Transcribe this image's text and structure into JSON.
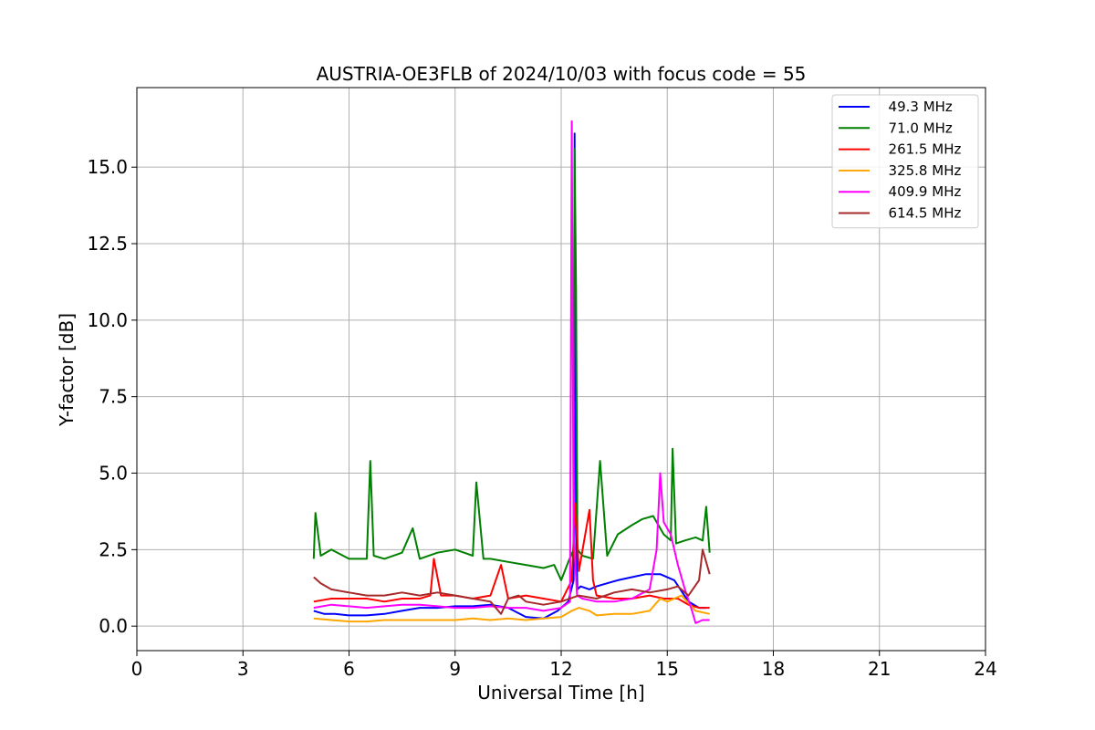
{
  "chart_data": {
    "type": "line",
    "title": "AUSTRIA-OE3FLB of 2024/10/03 with focus code = 55",
    "xlabel": "Universal Time [h]",
    "ylabel": "Y-factor [dB]",
    "xlim": [
      0,
      24
    ],
    "ylim": [
      -0.8,
      17.6
    ],
    "xticks": [
      0,
      3,
      6,
      9,
      12,
      15,
      18,
      21,
      24
    ],
    "xtick_labels": [
      "0",
      "3",
      "6",
      "9",
      "12",
      "15",
      "18",
      "21",
      "24"
    ],
    "yticks": [
      0,
      2.5,
      5,
      7.5,
      10,
      12.5,
      15
    ],
    "ytick_labels": [
      "0.0",
      "2.5",
      "5.0",
      "7.5",
      "10.0",
      "12.5",
      "15.0"
    ],
    "grid": true,
    "legend_position": "top-right",
    "series": [
      {
        "name": "  49.3 MHz",
        "color": "#0000ff",
        "x": [
          5.0,
          5.3,
          5.6,
          6.0,
          6.5,
          7.0,
          7.5,
          8.0,
          8.5,
          9.0,
          9.5,
          10.0,
          10.5,
          11.0,
          11.5,
          11.9,
          12.2,
          12.35,
          12.38,
          12.42,
          12.46,
          12.55,
          12.8,
          13.0,
          13.3,
          13.6,
          14.0,
          14.4,
          14.8,
          15.2,
          15.6,
          15.9,
          16.1
        ],
        "y": [
          0.5,
          0.4,
          0.4,
          0.35,
          0.35,
          0.4,
          0.5,
          0.6,
          0.6,
          0.65,
          0.65,
          0.7,
          0.6,
          0.3,
          0.25,
          0.5,
          0.8,
          1.5,
          16.1,
          3.0,
          1.2,
          1.3,
          1.2,
          1.3,
          1.4,
          1.5,
          1.6,
          1.7,
          1.7,
          1.5,
          0.8,
          0.6,
          0.6
        ]
      },
      {
        "name": "  71.0 MHz",
        "color": "#008000",
        "x": [
          5.0,
          5.05,
          5.2,
          5.5,
          6.0,
          6.5,
          6.6,
          6.7,
          7.0,
          7.5,
          7.8,
          8.0,
          8.5,
          9.0,
          9.5,
          9.6,
          9.8,
          10.0,
          10.5,
          11.0,
          11.5,
          11.8,
          12.0,
          12.2,
          12.35,
          12.38,
          12.42,
          12.46,
          12.6,
          12.9,
          13.1,
          13.3,
          13.6,
          14.0,
          14.3,
          14.6,
          14.9,
          15.1,
          15.15,
          15.25,
          15.5,
          15.8,
          16.0,
          16.1,
          16.2
        ],
        "y": [
          2.2,
          3.7,
          2.3,
          2.5,
          2.2,
          2.2,
          5.4,
          2.3,
          2.2,
          2.4,
          3.2,
          2.2,
          2.4,
          2.5,
          2.3,
          4.7,
          2.2,
          2.2,
          2.1,
          2.0,
          1.9,
          2.0,
          1.5,
          2.1,
          2.5,
          15.6,
          11.0,
          2.5,
          2.3,
          2.2,
          5.4,
          2.3,
          3.0,
          3.3,
          3.5,
          3.6,
          3.0,
          2.8,
          5.8,
          2.7,
          2.8,
          2.9,
          2.8,
          3.9,
          2.4
        ]
      },
      {
        "name": "  261.5 MHz",
        "color": "#ff0000",
        "x": [
          5.0,
          5.5,
          6.0,
          6.5,
          7.0,
          7.5,
          8.0,
          8.3,
          8.4,
          8.6,
          9.0,
          9.5,
          10.0,
          10.3,
          10.5,
          11.0,
          11.5,
          12.0,
          12.3,
          12.4,
          12.5,
          12.8,
          12.9,
          13.0,
          13.5,
          14.0,
          14.5,
          14.9,
          15.3,
          15.6,
          15.9,
          16.2
        ],
        "y": [
          0.8,
          0.9,
          0.9,
          0.9,
          0.8,
          0.9,
          0.9,
          1.0,
          2.2,
          1.0,
          1.0,
          0.9,
          1.0,
          2.0,
          0.9,
          1.0,
          0.9,
          0.8,
          1.5,
          4.0,
          1.8,
          3.8,
          1.5,
          1.0,
          0.9,
          0.9,
          1.0,
          0.9,
          0.9,
          0.7,
          0.6,
          0.6
        ]
      },
      {
        "name": "  325.8 MHz",
        "color": "#ffa500",
        "x": [
          5.0,
          5.5,
          6.0,
          6.5,
          7.0,
          7.5,
          8.0,
          8.5,
          9.0,
          9.5,
          10.0,
          10.5,
          11.0,
          11.5,
          12.0,
          12.3,
          12.5,
          12.8,
          13.0,
          13.5,
          14.0,
          14.5,
          14.8,
          15.0,
          15.4,
          15.8,
          16.2
        ],
        "y": [
          0.25,
          0.2,
          0.15,
          0.15,
          0.2,
          0.2,
          0.2,
          0.2,
          0.2,
          0.25,
          0.2,
          0.25,
          0.2,
          0.25,
          0.3,
          0.5,
          0.6,
          0.5,
          0.35,
          0.4,
          0.4,
          0.5,
          0.9,
          0.8,
          1.0,
          0.5,
          0.4
        ]
      },
      {
        "name": "  409.9 MHz",
        "color": "#ff00ff",
        "x": [
          5.0,
          5.5,
          6.0,
          6.5,
          7.0,
          7.5,
          8.0,
          8.5,
          9.0,
          9.5,
          10.0,
          10.5,
          11.0,
          11.5,
          12.0,
          12.25,
          12.3,
          12.35,
          12.45,
          12.6,
          13.0,
          13.5,
          14.0,
          14.5,
          14.7,
          14.8,
          14.9,
          15.1,
          15.3,
          15.5,
          15.7,
          15.8,
          16.0,
          16.2
        ],
        "y": [
          0.6,
          0.7,
          0.65,
          0.6,
          0.65,
          0.7,
          0.7,
          0.65,
          0.6,
          0.6,
          0.65,
          0.6,
          0.6,
          0.5,
          0.6,
          0.8,
          16.5,
          3.0,
          1.0,
          0.9,
          0.8,
          0.8,
          0.9,
          1.2,
          2.5,
          5.0,
          3.4,
          3.0,
          2.0,
          1.2,
          0.5,
          0.1,
          0.2,
          0.2
        ]
      },
      {
        "name": "  614.5 MHz",
        "color": "#a52a2a",
        "x": [
          5.0,
          5.2,
          5.5,
          6.0,
          6.5,
          7.0,
          7.5,
          8.0,
          8.5,
          9.0,
          9.5,
          10.0,
          10.3,
          10.5,
          10.8,
          11.0,
          11.5,
          12.0,
          12.5,
          13.0,
          13.5,
          14.0,
          14.5,
          15.0,
          15.3,
          15.6,
          15.9,
          16.0,
          16.2
        ],
        "y": [
          1.6,
          1.4,
          1.2,
          1.1,
          1.0,
          1.0,
          1.1,
          1.0,
          1.1,
          1.0,
          0.9,
          0.8,
          0.4,
          0.9,
          1.0,
          0.8,
          0.7,
          0.8,
          1.0,
          0.9,
          1.1,
          1.2,
          1.1,
          1.2,
          1.3,
          1.0,
          1.5,
          2.5,
          1.7
        ]
      }
    ]
  }
}
